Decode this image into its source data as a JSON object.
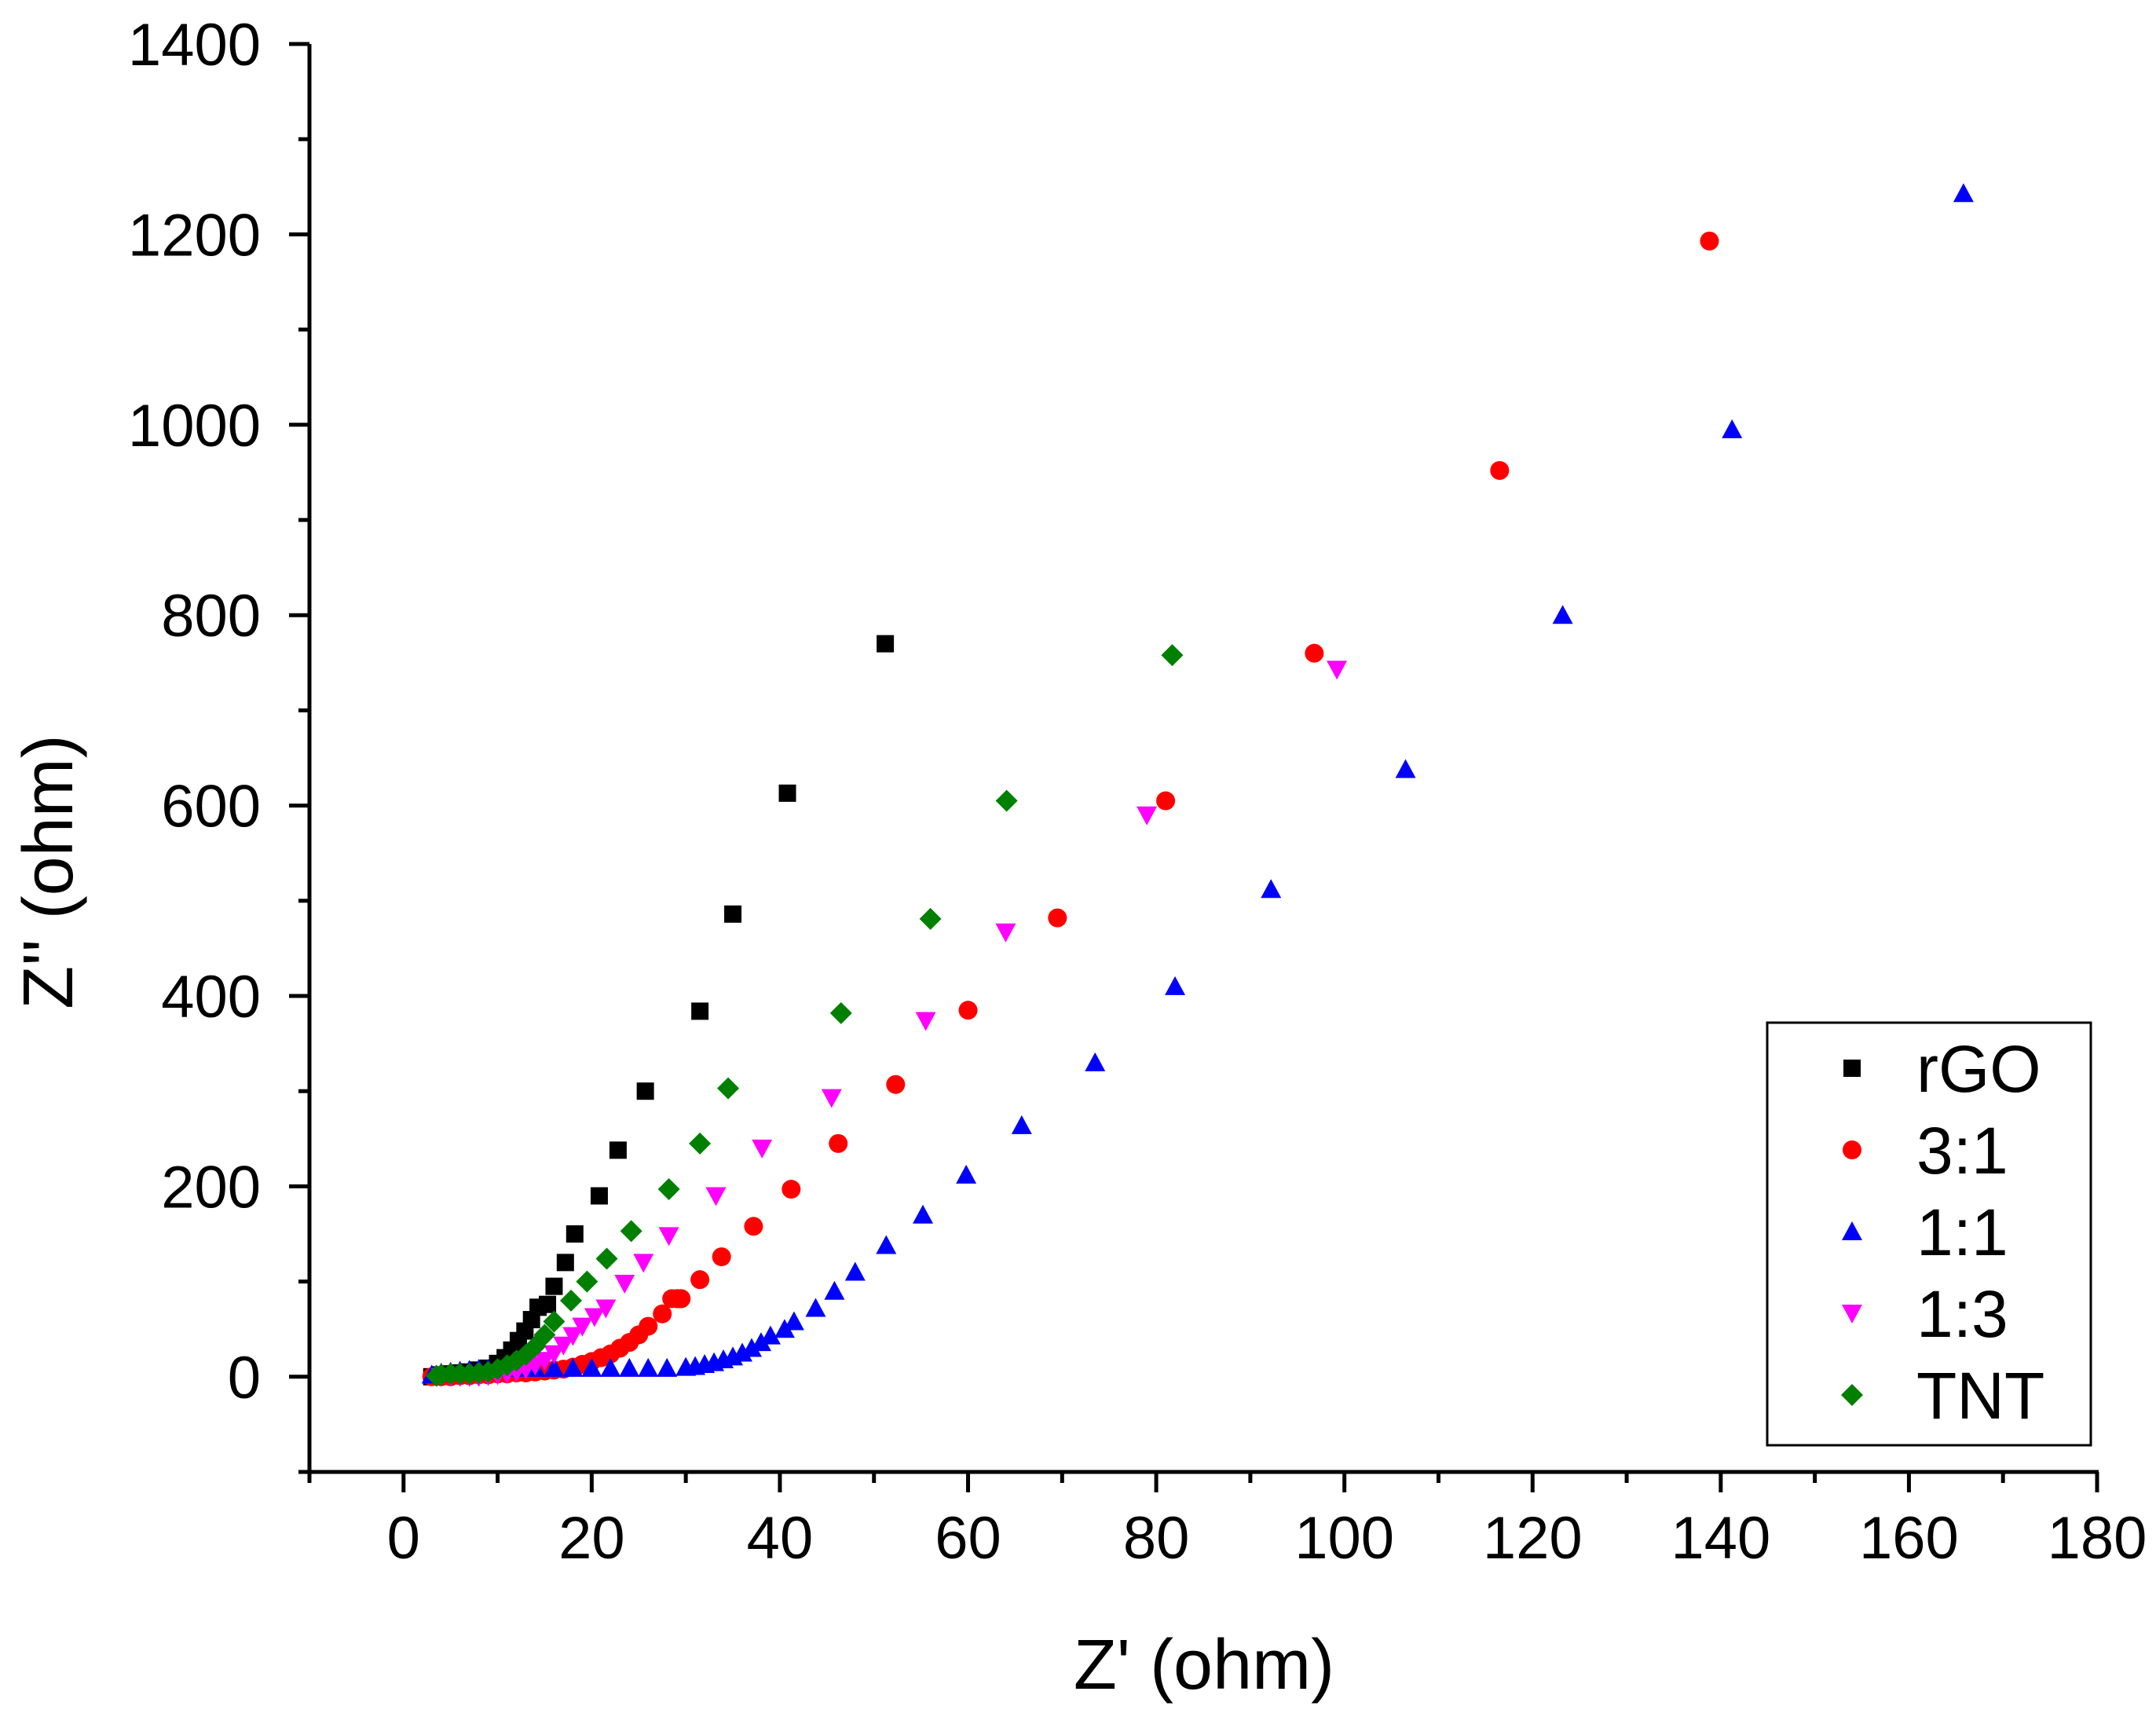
{
  "chart_data": {
    "type": "scatter",
    "title": "",
    "xlabel": "Z' (ohm)",
    "ylabel": "Z'' (ohm)",
    "xlim": [
      -10,
      180
    ],
    "ylim": [
      -100,
      1400
    ],
    "xticks": [
      0,
      20,
      40,
      60,
      80,
      100,
      120,
      140,
      160,
      180
    ],
    "yticks": [
      0,
      200,
      400,
      600,
      800,
      1000,
      1200,
      1400
    ],
    "xtick_labels": [
      "0",
      "20",
      "40",
      "60",
      "80",
      "100",
      "120",
      "140",
      "160",
      "180"
    ],
    "ytick_labels": [
      "0",
      "200",
      "400",
      "600",
      "800",
      "1000",
      "1200",
      "1400"
    ],
    "grid": false,
    "legend_position": "bottom-right",
    "series": [
      {
        "name": "rGO",
        "marker": "square",
        "color": "#000000",
        "points": [
          [
            3,
            0
          ],
          [
            4,
            2
          ],
          [
            5,
            3
          ],
          [
            6,
            4
          ],
          [
            7,
            5
          ],
          [
            8,
            7
          ],
          [
            9,
            9
          ],
          [
            10,
            14
          ],
          [
            10.8,
            20
          ],
          [
            11.5,
            28
          ],
          [
            12.2,
            38
          ],
          [
            12.9,
            48
          ],
          [
            13.6,
            60
          ],
          [
            14.3,
            73
          ],
          [
            15.3,
            76
          ],
          [
            16,
            95
          ],
          [
            17.2,
            120
          ],
          [
            18.2,
            150
          ],
          [
            20.8,
            190
          ],
          [
            22.8,
            238
          ],
          [
            25.7,
            300
          ],
          [
            31.5,
            384
          ],
          [
            35,
            486
          ],
          [
            40.8,
            613
          ],
          [
            51.2,
            770
          ]
        ]
      },
      {
        "name": "3:1",
        "marker": "circle",
        "color": "#ff0000",
        "points": [
          [
            3,
            0
          ],
          [
            4,
            0
          ],
          [
            5,
            0
          ],
          [
            6,
            1
          ],
          [
            7,
            1
          ],
          [
            8,
            2
          ],
          [
            9,
            2
          ],
          [
            10,
            3
          ],
          [
            11,
            3
          ],
          [
            12,
            4
          ],
          [
            13,
            4
          ],
          [
            14,
            5
          ],
          [
            15,
            6
          ],
          [
            16,
            7
          ],
          [
            17,
            8
          ],
          [
            18,
            10
          ],
          [
            19,
            13
          ],
          [
            20,
            16
          ],
          [
            21,
            20
          ],
          [
            22,
            24
          ],
          [
            23,
            30
          ],
          [
            24,
            36
          ],
          [
            25,
            44
          ],
          [
            26,
            53
          ],
          [
            27.5,
            66
          ],
          [
            29,
            82
          ],
          [
            29.5,
            82
          ],
          [
            29.5,
            82
          ],
          [
            29.2,
            82
          ],
          [
            28.5,
            82
          ],
          [
            29.2,
            82
          ],
          [
            29.5,
            82
          ],
          [
            29.1,
            82
          ],
          [
            31.5,
            102
          ],
          [
            33.8,
            126
          ],
          [
            37.2,
            158
          ],
          [
            41.2,
            197
          ],
          [
            46.2,
            245
          ],
          [
            52.3,
            307
          ],
          [
            60,
            385
          ],
          [
            69.5,
            482
          ],
          [
            81,
            605
          ],
          [
            96.8,
            760
          ],
          [
            116.5,
            952
          ],
          [
            138.8,
            1193
          ]
        ]
      },
      {
        "name": "1:1",
        "marker": "triangle-up",
        "color": "#0000ff",
        "points": [
          [
            3,
            2
          ],
          [
            4,
            4
          ],
          [
            5,
            5
          ],
          [
            6,
            6
          ],
          [
            7,
            7
          ],
          [
            8,
            8
          ],
          [
            9,
            8
          ],
          [
            10,
            9
          ],
          [
            12,
            9
          ],
          [
            14,
            9
          ],
          [
            16,
            9
          ],
          [
            18,
            9
          ],
          [
            20,
            9
          ],
          [
            22,
            9
          ],
          [
            24,
            9
          ],
          [
            26,
            9
          ],
          [
            28,
            9
          ],
          [
            30,
            10
          ],
          [
            31,
            11
          ],
          [
            32,
            13
          ],
          [
            33,
            15
          ],
          [
            34,
            18
          ],
          [
            35,
            21
          ],
          [
            36,
            25
          ],
          [
            37,
            30
          ],
          [
            38,
            36
          ],
          [
            39,
            43
          ],
          [
            40.5,
            50
          ],
          [
            41.5,
            58
          ],
          [
            43.8,
            72
          ],
          [
            45.8,
            90
          ],
          [
            48,
            110
          ],
          [
            51.3,
            138
          ],
          [
            55.2,
            170
          ],
          [
            59.8,
            212
          ],
          [
            65.7,
            264
          ],
          [
            73.5,
            330
          ],
          [
            82,
            410
          ],
          [
            92.2,
            512
          ],
          [
            106.5,
            638
          ],
          [
            123.2,
            800
          ],
          [
            141.2,
            995
          ],
          [
            165.8,
            1243
          ]
        ]
      },
      {
        "name": "1:3",
        "marker": "triangle-down",
        "color": "#ff00ff",
        "points": [
          [
            4,
            0
          ],
          [
            5,
            0
          ],
          [
            6,
            0
          ],
          [
            7,
            0
          ],
          [
            8,
            0
          ],
          [
            9,
            1
          ],
          [
            10,
            2
          ],
          [
            11,
            3
          ],
          [
            12,
            5
          ],
          [
            13,
            8
          ],
          [
            14,
            12
          ],
          [
            15,
            17
          ],
          [
            16,
            24
          ],
          [
            17,
            33
          ],
          [
            18,
            43
          ],
          [
            19,
            53
          ],
          [
            20.3,
            63
          ],
          [
            21.5,
            72
          ],
          [
            23.5,
            98
          ],
          [
            25.5,
            120
          ],
          [
            28.2,
            148
          ],
          [
            33.2,
            190
          ],
          [
            38.1,
            240
          ],
          [
            45.5,
            293
          ],
          [
            55.5,
            374
          ],
          [
            64,
            467
          ],
          [
            79,
            590
          ],
          [
            99.2,
            743
          ]
        ]
      },
      {
        "name": "TNT",
        "marker": "diamond",
        "color": "#008000",
        "points": [
          [
            3.5,
            1
          ],
          [
            4,
            2
          ],
          [
            5,
            3
          ],
          [
            6,
            3
          ],
          [
            7,
            3
          ],
          [
            8,
            4
          ],
          [
            9,
            5
          ],
          [
            10,
            8
          ],
          [
            11,
            12
          ],
          [
            12,
            17
          ],
          [
            13,
            23
          ],
          [
            14,
            32
          ],
          [
            15,
            44
          ],
          [
            16,
            58
          ],
          [
            17.8,
            80
          ],
          [
            19.5,
            100
          ],
          [
            21.6,
            124
          ],
          [
            24.2,
            153
          ],
          [
            28.2,
            197
          ],
          [
            31.5,
            245
          ],
          [
            34.5,
            303
          ],
          [
            46.5,
            382
          ],
          [
            56,
            481
          ],
          [
            64.1,
            605
          ],
          [
            81.7,
            758
          ]
        ]
      }
    ]
  }
}
